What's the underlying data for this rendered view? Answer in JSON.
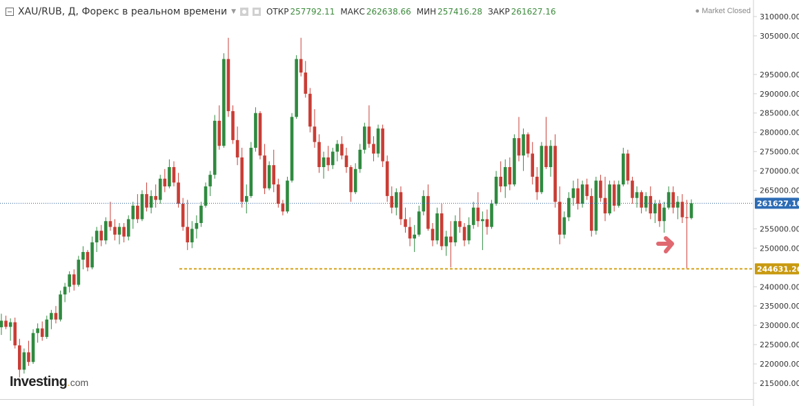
{
  "header": {
    "title": "XAU/RUB, Д, Форекс в реальном времени",
    "ohlc": [
      {
        "label": "ОТКР",
        "value": "257792.11"
      },
      {
        "label": "МАКС",
        "value": "262638.66"
      },
      {
        "label": "МИН",
        "value": "257416.28"
      },
      {
        "label": "ЗАКР",
        "value": "261627.16"
      }
    ],
    "status": "Market Closed"
  },
  "logo": {
    "main": "Investing",
    "dot": ".",
    "com": "com"
  },
  "icons": [
    "collapse-icon",
    "settings-icon",
    "camera-icon",
    "caret-down-icon",
    "status-dot-icon",
    "arrow-right-icon"
  ],
  "colors": {
    "up": "#2f8a3f",
    "down": "#c93d35",
    "current_price_line": "#2d5f9a",
    "current_price_badge": "#2d6cb5",
    "support_line": "#d4a017",
    "support_badge": "#c99a10",
    "arrow": "#e06870",
    "ohlc_value": "#3c8a3c"
  },
  "chart_data": {
    "type": "candlestick",
    "series": [
      {
        "values": [
          [
            229500,
            233000,
            227500,
            231200
          ],
          [
            231200,
            232500,
            229000,
            229600
          ],
          [
            229600,
            231800,
            226000,
            230800
          ],
          [
            230800,
            232000,
            224000,
            224800
          ],
          [
            224800,
            226500,
            216500,
            218500
          ],
          [
            218500,
            224000,
            217500,
            223000
          ],
          [
            223000,
            226000,
            219500,
            220500
          ],
          [
            220500,
            229000,
            220000,
            228000
          ],
          [
            228000,
            230500,
            225500,
            229200
          ],
          [
            229200,
            231000,
            226000,
            227000
          ],
          [
            227000,
            232500,
            226500,
            231500
          ],
          [
            231500,
            234000,
            229000,
            233200
          ],
          [
            233200,
            235000,
            230500,
            231500
          ],
          [
            231500,
            239000,
            231000,
            238000
          ],
          [
            238000,
            241000,
            236000,
            240000
          ],
          [
            240000,
            244000,
            238500,
            243200
          ],
          [
            243200,
            244500,
            239000,
            240500
          ],
          [
            240500,
            248000,
            240000,
            247000
          ],
          [
            247000,
            250500,
            244500,
            249000
          ],
          [
            249000,
            249500,
            244000,
            245000
          ],
          [
            245000,
            253000,
            244500,
            251500
          ],
          [
            251500,
            255500,
            249000,
            254500
          ],
          [
            254500,
            256000,
            250500,
            252000
          ],
          [
            252000,
            258000,
            251000,
            257000
          ],
          [
            257000,
            262000,
            254500,
            255500
          ],
          [
            255500,
            257500,
            252000,
            253500
          ],
          [
            253500,
            256500,
            251000,
            255500
          ],
          [
            255500,
            256500,
            251500,
            253000
          ],
          [
            253000,
            258500,
            252000,
            257500
          ],
          [
            257500,
            262000,
            255000,
            261000
          ],
          [
            261000,
            264000,
            256500,
            257500
          ],
          [
            257500,
            265000,
            257000,
            264000
          ],
          [
            264000,
            267000,
            259500,
            260500
          ],
          [
            260500,
            265000,
            259000,
            263500
          ],
          [
            263500,
            266500,
            260500,
            262500
          ],
          [
            262500,
            269000,
            261500,
            268000
          ],
          [
            268000,
            270500,
            264500,
            266000
          ],
          [
            266000,
            273000,
            265500,
            271000
          ],
          [
            271000,
            272500,
            266000,
            267000
          ],
          [
            267000,
            269500,
            260500,
            261500
          ],
          [
            261500,
            263000,
            254500,
            255500
          ],
          [
            255500,
            262500,
            249500,
            251500
          ],
          [
            251500,
            257000,
            250000,
            255000
          ],
          [
            255000,
            258500,
            252500,
            256500
          ],
          [
            256500,
            262000,
            255500,
            261000
          ],
          [
            261000,
            267000,
            260500,
            266000
          ],
          [
            266000,
            270000,
            263500,
            269000
          ],
          [
            269000,
            284500,
            268000,
            283000
          ],
          [
            283000,
            287000,
            275500,
            276500
          ],
          [
            276500,
            300500,
            276000,
            299000
          ],
          [
            299000,
            304500,
            284000,
            285500
          ],
          [
            285500,
            287000,
            277000,
            278000
          ],
          [
            278000,
            281500,
            271500,
            273500
          ],
          [
            273500,
            276000,
            260500,
            262000
          ],
          [
            262000,
            266500,
            259000,
            263500
          ],
          [
            263500,
            277500,
            263000,
            276000
          ],
          [
            276000,
            286500,
            275000,
            285000
          ],
          [
            285000,
            285500,
            273000,
            274000
          ],
          [
            274000,
            277000,
            264000,
            265500
          ],
          [
            265500,
            272500,
            265000,
            271500
          ],
          [
            271500,
            275500,
            264500,
            266500
          ],
          [
            266500,
            268000,
            260500,
            261500
          ],
          [
            261500,
            262500,
            258500,
            259500
          ],
          [
            259500,
            268500,
            259000,
            267500
          ],
          [
            267500,
            285000,
            267000,
            284000
          ],
          [
            284000,
            300000,
            283500,
            299000
          ],
          [
            299000,
            304500,
            294500,
            295500
          ],
          [
            295500,
            298500,
            289000,
            290000
          ],
          [
            290000,
            291500,
            280000,
            281500
          ],
          [
            281500,
            286000,
            276000,
            277500
          ],
          [
            277500,
            279500,
            269500,
            271000
          ],
          [
            271000,
            275000,
            268000,
            273500
          ],
          [
            273500,
            276500,
            270000,
            271500
          ],
          [
            271500,
            276000,
            270500,
            275000
          ],
          [
            275000,
            278000,
            272500,
            277000
          ],
          [
            277000,
            279000,
            273000,
            274000
          ],
          [
            274000,
            276000,
            269500,
            271000
          ],
          [
            271000,
            271500,
            262000,
            264500
          ],
          [
            264500,
            272000,
            264000,
            270500
          ],
          [
            270500,
            277000,
            269500,
            275500
          ],
          [
            275500,
            282500,
            274500,
            281500
          ],
          [
            281500,
            287000,
            276000,
            277000
          ],
          [
            277000,
            279000,
            272500,
            274500
          ],
          [
            274500,
            282000,
            273500,
            281000
          ],
          [
            281000,
            282000,
            271000,
            272500
          ],
          [
            272500,
            274000,
            262000,
            263500
          ],
          [
            263500,
            266000,
            259000,
            260500
          ],
          [
            260500,
            265500,
            258500,
            264500
          ],
          [
            264500,
            266000,
            256000,
            257500
          ],
          [
            257500,
            260500,
            254000,
            255500
          ],
          [
            255500,
            258000,
            250500,
            252500
          ],
          [
            252500,
            256000,
            249000,
            253500
          ],
          [
            253500,
            261000,
            253000,
            259500
          ],
          [
            259500,
            265000,
            258500,
            263500
          ],
          [
            263500,
            266500,
            254500,
            255000
          ],
          [
            255000,
            256500,
            250500,
            252000
          ],
          [
            252000,
            260500,
            251000,
            259000
          ],
          [
            259000,
            261500,
            249500,
            250500
          ],
          [
            250500,
            254500,
            248000,
            253000
          ],
          [
            253000,
            257000,
            245000,
            251500
          ],
          [
            251500,
            258500,
            250500,
            257000
          ],
          [
            257000,
            260500,
            254000,
            255500
          ],
          [
            255500,
            256500,
            250500,
            252000
          ],
          [
            252000,
            258000,
            251000,
            256000
          ],
          [
            256000,
            262000,
            255000,
            260500
          ],
          [
            260500,
            264500,
            255500,
            257000
          ],
          [
            257000,
            259500,
            249500,
            257500
          ],
          [
            257500,
            260000,
            253500,
            255500
          ],
          [
            255500,
            262500,
            255000,
            261500
          ],
          [
            261500,
            270000,
            261000,
            268500
          ],
          [
            268500,
            272500,
            264500,
            266000
          ],
          [
            266000,
            273000,
            263000,
            271000
          ],
          [
            271000,
            273500,
            265000,
            266500
          ],
          [
            266500,
            279500,
            266000,
            278500
          ],
          [
            278500,
            284000,
            272500,
            274000
          ],
          [
            274000,
            281000,
            270000,
            279500
          ],
          [
            279500,
            280000,
            273500,
            274500
          ],
          [
            274500,
            277500,
            266500,
            268500
          ],
          [
            268500,
            271000,
            262500,
            264500
          ],
          [
            264500,
            277500,
            264000,
            276500
          ],
          [
            276500,
            284000,
            270500,
            271000
          ],
          [
            271000,
            278000,
            268500,
            276500
          ],
          [
            276500,
            279500,
            260500,
            262000
          ],
          [
            262000,
            266000,
            251000,
            253500
          ],
          [
            253500,
            259500,
            252500,
            258000
          ],
          [
            258000,
            264500,
            257000,
            263000
          ],
          [
            263000,
            267500,
            261000,
            265500
          ],
          [
            265500,
            268000,
            260000,
            261500
          ],
          [
            261500,
            267500,
            260500,
            266500
          ],
          [
            266500,
            268000,
            262500,
            263500
          ],
          [
            263500,
            265500,
            253000,
            254500
          ],
          [
            254500,
            268500,
            253500,
            267500
          ],
          [
            267500,
            269000,
            262000,
            263000
          ],
          [
            263000,
            268500,
            257000,
            259000
          ],
          [
            259000,
            267500,
            258500,
            266500
          ],
          [
            266500,
            267500,
            259500,
            261000
          ],
          [
            261000,
            267500,
            260500,
            266500
          ],
          [
            266500,
            276000,
            266000,
            274500
          ],
          [
            274500,
            275500,
            266500,
            267500
          ],
          [
            267500,
            268500,
            261500,
            263000
          ],
          [
            263000,
            266000,
            260500,
            264500
          ],
          [
            264500,
            265000,
            259000,
            260500
          ],
          [
            260500,
            264500,
            259500,
            263500
          ],
          [
            263500,
            266000,
            257500,
            259000
          ],
          [
            259000,
            262500,
            256500,
            261500
          ],
          [
            261500,
            262500,
            255500,
            257000
          ],
          [
            257000,
            262000,
            254000,
            260500
          ],
          [
            260500,
            266000,
            260000,
            264500
          ],
          [
            264500,
            266000,
            259000,
            260500
          ],
          [
            260500,
            263500,
            257500,
            262000
          ],
          [
            262000,
            264000,
            256500,
            258000
          ],
          [
            258000,
            262500,
            244631.26,
            257792.11
          ],
          [
            257792.11,
            262638.66,
            257416.28,
            261627.16
          ]
        ]
      }
    ],
    "x_labels": [],
    "y_ticks": [
      310000,
      305000,
      295000,
      290000,
      285000,
      280000,
      275000,
      270000,
      265000,
      255000,
      250000,
      240000,
      235000,
      230000,
      225000,
      220000,
      215000
    ],
    "ylim": [
      212000,
      312000
    ],
    "current_price": "261627.16",
    "support_level": "244631.26",
    "grid": false
  }
}
